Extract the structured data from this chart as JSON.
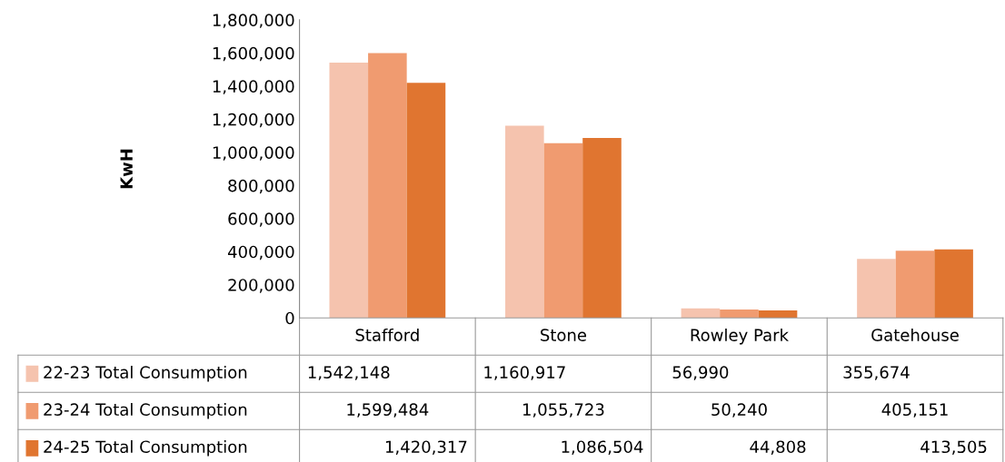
{
  "chart_data": {
    "type": "bar",
    "ylabel": "KwH",
    "categories": [
      "Stafford",
      "Stone",
      "Rowley Park",
      "Gatehouse"
    ],
    "series": [
      {
        "name": "22-23 Total Consumption",
        "color": "#f5c3ae",
        "values": [
          1542148,
          1160917,
          56990,
          355674
        ],
        "value_labels": [
          "1,542,148",
          "1,160,917",
          "56,990",
          "355,674"
        ]
      },
      {
        "name": "23-24 Total Consumption",
        "color": "#f09b70",
        "values": [
          1599484,
          1055723,
          50240,
          405151
        ],
        "value_labels": [
          "1,599,484",
          "1,055,723",
          "50,240",
          "405,151"
        ]
      },
      {
        "name": "24-25 Total Consumption",
        "color": "#e07530",
        "values": [
          1420317,
          1086504,
          44808,
          413505
        ],
        "value_labels": [
          "1,420,317",
          "1,086,504",
          "44,808",
          "413,505"
        ]
      }
    ],
    "ylim": [
      0,
      1800000
    ],
    "yticks": [
      0,
      {
        "value": 200000,
        "label": "200,000"
      },
      {
        "value": 400000,
        "label": "400,000"
      },
      {
        "value": 600000,
        "label": "600,000"
      },
      {
        "value": 800000,
        "label": "800,000"
      },
      {
        "value": 1000000,
        "label": "1,000,000"
      },
      {
        "value": 1200000,
        "label": "1,200,000"
      },
      {
        "value": 1400000,
        "label": "1,400,000"
      },
      {
        "value": 1600000,
        "label": "1,600,000"
      },
      {
        "value": 1800000,
        "label": "1,800,000"
      }
    ],
    "grid": false,
    "legend": "bottom"
  }
}
